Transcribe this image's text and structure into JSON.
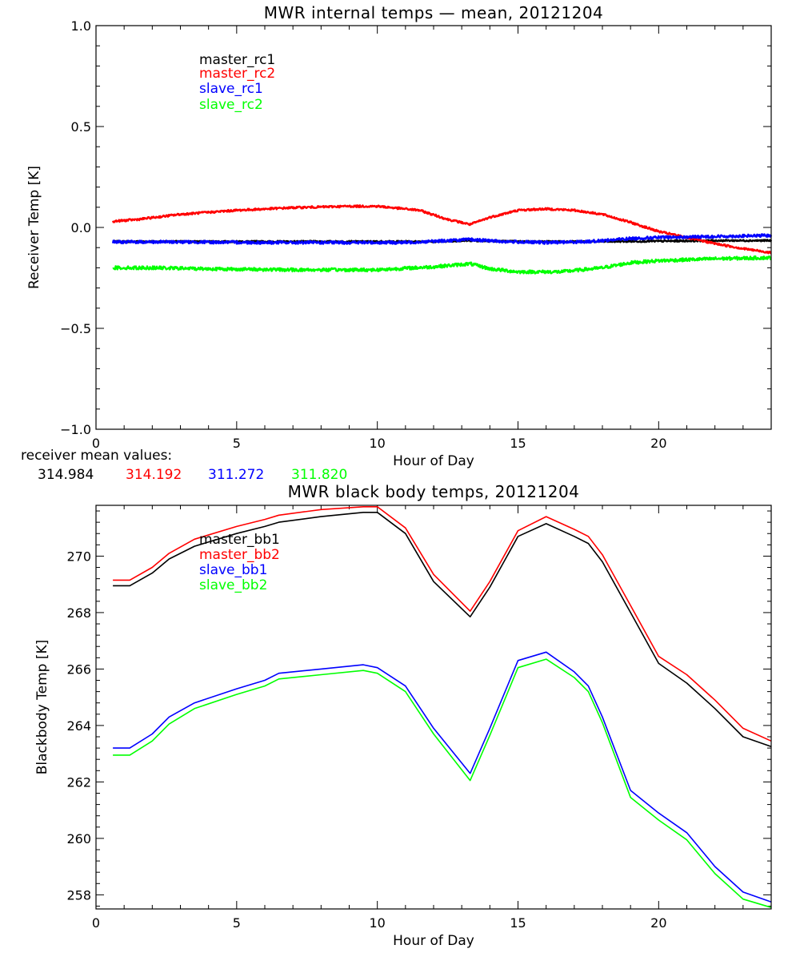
{
  "colors": {
    "master_1": "#000000",
    "master_2": "#ff0000",
    "slave_1": "#0000ff",
    "slave_2": "#00ff00",
    "axes": "#000000",
    "background": "#ffffff"
  },
  "chart_data": [
    {
      "type": "line",
      "title": "MWR internal temps — mean, 20121204",
      "xlabel": "Hour of Day",
      "ylabel": "Receiver Temp [K]",
      "xlim": [
        0,
        24
      ],
      "ylim": [
        -1.0,
        1.0
      ],
      "xticks": [
        0,
        5,
        10,
        15,
        20
      ],
      "yticks": [
        -1.0,
        -0.5,
        0.0,
        0.5,
        1.0
      ],
      "ytick_labels": [
        "−1.0",
        "−0.5",
        "0.0",
        "0.5",
        "1.0"
      ],
      "grid": false,
      "legend_position": "top-left",
      "noise": [
        0.004,
        0.005,
        0.007,
        0.008
      ],
      "series": [
        {
          "name": "master_rc1",
          "color_key": "master_1",
          "x": [
            0.6,
            3,
            6,
            9,
            12,
            13.3,
            15,
            18,
            20,
            22,
            24
          ],
          "y": [
            -0.07,
            -0.07,
            -0.07,
            -0.07,
            -0.07,
            -0.065,
            -0.07,
            -0.07,
            -0.068,
            -0.065,
            -0.065
          ]
        },
        {
          "name": "master_rc2",
          "color_key": "master_2",
          "x": [
            0.6,
            1.5,
            3,
            5,
            7,
            9,
            10,
            11.5,
            12.5,
            13.3,
            14,
            15,
            16,
            17,
            18,
            19,
            20,
            21,
            22,
            23,
            24
          ],
          "y": [
            0.03,
            0.04,
            0.065,
            0.085,
            0.098,
            0.105,
            0.105,
            0.085,
            0.04,
            0.015,
            0.05,
            0.085,
            0.092,
            0.085,
            0.065,
            0.025,
            -0.02,
            -0.05,
            -0.08,
            -0.105,
            -0.125
          ]
        },
        {
          "name": "slave_rc1",
          "color_key": "slave_1",
          "x": [
            0.6,
            3,
            6,
            9,
            11,
            12.5,
            13.3,
            14.5,
            16,
            17.5,
            19,
            20,
            22,
            24
          ],
          "y": [
            -0.072,
            -0.072,
            -0.075,
            -0.075,
            -0.075,
            -0.065,
            -0.06,
            -0.07,
            -0.075,
            -0.07,
            -0.055,
            -0.05,
            -0.045,
            -0.04
          ]
        },
        {
          "name": "slave_rc2",
          "color_key": "slave_2",
          "x": [
            0.6,
            2,
            4,
            7,
            10,
            12,
            13.3,
            14,
            15,
            16.5,
            18,
            19,
            20,
            21,
            22,
            24
          ],
          "y": [
            -0.2,
            -0.2,
            -0.205,
            -0.21,
            -0.21,
            -0.195,
            -0.18,
            -0.205,
            -0.22,
            -0.22,
            -0.2,
            -0.175,
            -0.165,
            -0.16,
            -0.155,
            -0.15
          ]
        }
      ],
      "mean_values_label": "receiver mean values:",
      "mean_values": [
        "314.984",
        "314.192",
        "311.272",
        "311.820"
      ]
    },
    {
      "type": "line",
      "title": "MWR black body temps, 20121204",
      "xlabel": "Hour of Day",
      "ylabel": "Blackbody Temp [K]",
      "xlim": [
        0,
        24
      ],
      "ylim": [
        257.5,
        271.8
      ],
      "xticks": [
        0,
        5,
        10,
        15,
        20
      ],
      "yticks": [
        258,
        260,
        262,
        264,
        266,
        268,
        270
      ],
      "ytick_labels": [
        "258",
        "260",
        "262",
        "264",
        "266",
        "268",
        "270"
      ],
      "grid": false,
      "legend_position": "top-left",
      "series": [
        {
          "name": "master_bb1",
          "color_key": "master_1",
          "x": [
            0.6,
            1.2,
            2,
            2.6,
            3.5,
            5,
            6,
            6.5,
            8,
            9.5,
            10,
            11,
            12,
            13.3,
            14,
            15,
            16,
            17,
            17.5,
            18,
            19,
            20,
            21,
            22,
            23,
            24
          ],
          "y": [
            268.95,
            268.95,
            269.4,
            269.9,
            270.35,
            270.8,
            271.05,
            271.2,
            271.4,
            271.55,
            271.55,
            270.8,
            269.1,
            267.85,
            268.9,
            270.7,
            271.15,
            270.7,
            270.45,
            269.8,
            268.0,
            266.2,
            265.5,
            264.6,
            263.6,
            263.25
          ]
        },
        {
          "name": "master_bb2",
          "color_key": "master_2",
          "x": [
            0.6,
            1.2,
            2,
            2.6,
            3.5,
            5,
            6,
            6.5,
            8,
            9.5,
            10,
            11,
            12,
            13.3,
            14,
            15,
            16,
            17,
            17.5,
            18,
            19,
            20,
            21,
            22,
            23,
            24
          ],
          "y": [
            269.15,
            269.15,
            269.6,
            270.1,
            270.6,
            271.05,
            271.3,
            271.45,
            271.65,
            271.75,
            271.75,
            271.0,
            269.35,
            268.05,
            269.1,
            270.9,
            271.4,
            270.95,
            270.7,
            270.05,
            268.25,
            266.45,
            265.8,
            264.9,
            263.9,
            263.45
          ]
        },
        {
          "name": "slave_bb1",
          "color_key": "slave_1",
          "x": [
            0.6,
            1.2,
            2,
            2.6,
            3.5,
            5,
            6,
            6.5,
            8,
            9.5,
            10,
            11,
            12,
            13.3,
            14,
            15,
            16,
            17,
            17.5,
            18,
            19,
            20,
            21,
            22,
            23,
            24
          ],
          "y": [
            263.2,
            263.2,
            263.7,
            264.3,
            264.8,
            265.3,
            265.6,
            265.85,
            266.0,
            266.15,
            266.05,
            265.4,
            263.9,
            262.3,
            263.9,
            266.3,
            266.6,
            265.9,
            265.4,
            264.3,
            261.7,
            260.9,
            260.2,
            259.0,
            258.1,
            257.75
          ]
        },
        {
          "name": "slave_bb2",
          "color_key": "slave_2",
          "x": [
            0.6,
            1.2,
            2,
            2.6,
            3.5,
            5,
            6,
            6.5,
            8,
            9.5,
            10,
            11,
            12,
            13.3,
            14,
            15,
            16,
            17,
            17.5,
            18,
            19,
            20,
            21,
            22,
            23,
            24
          ],
          "y": [
            262.95,
            262.95,
            263.45,
            264.05,
            264.6,
            265.1,
            265.4,
            265.65,
            265.8,
            265.95,
            265.85,
            265.2,
            263.7,
            262.05,
            263.65,
            266.05,
            266.35,
            265.7,
            265.2,
            264.1,
            261.45,
            260.65,
            259.95,
            258.75,
            257.85,
            257.55
          ]
        }
      ]
    }
  ]
}
